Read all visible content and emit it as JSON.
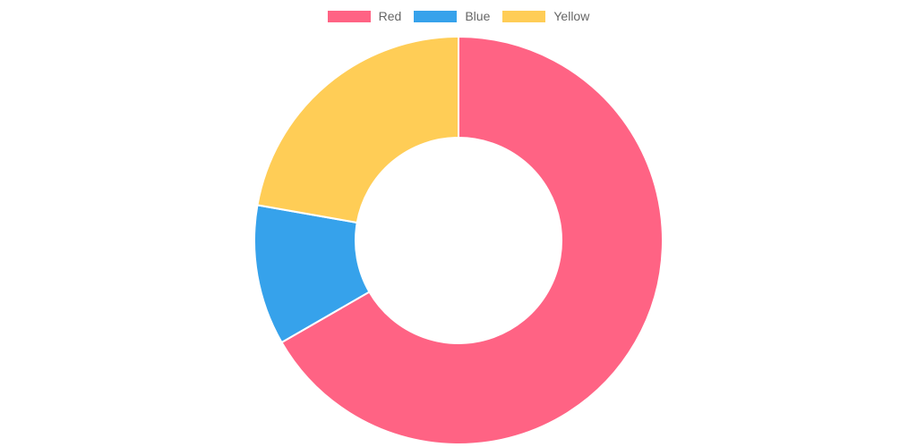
{
  "chart_data": {
    "type": "pie",
    "variant": "doughnut",
    "title": "",
    "categories": [
      "Red",
      "Blue",
      "Yellow"
    ],
    "values": [
      300,
      50,
      100
    ],
    "colors": [
      "#ff6384",
      "#36a2eb",
      "#ffcd56"
    ],
    "legend_position": "top"
  }
}
